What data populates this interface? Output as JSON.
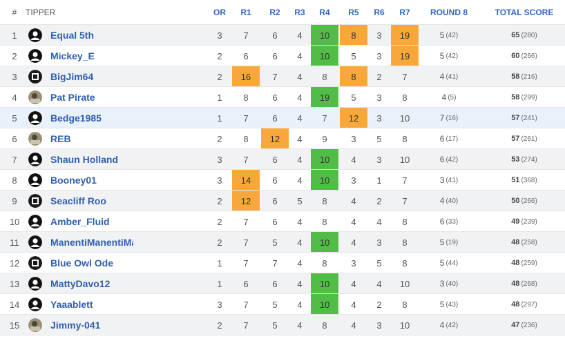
{
  "header": {
    "rank": "#",
    "tipper": "TIPPER",
    "or": "OR",
    "r1": "R1",
    "r2": "R2",
    "r3": "R3",
    "r4": "R4",
    "r5": "R5",
    "r6": "R6",
    "r7": "R7",
    "round8": "ROUND 8",
    "total": "TOTAL SCORE"
  },
  "colors": {
    "accent": "#2f66c7",
    "green": "#51bd46",
    "orange": "#f8a83a",
    "highlight_row": "#e9f1fb"
  },
  "rows": [
    {
      "rank": "1",
      "name": "Equal 5th",
      "avatar": "default-avatar-icon",
      "or": "3",
      "r1": "7",
      "r2": "6",
      "r3": "4",
      "r4": "10",
      "r5": "8",
      "r6": "3",
      "r7": "19",
      "rd8": "5",
      "rd8_sub": "(42)",
      "total": "65",
      "total_sub": "(280)",
      "hl": {
        "r4": "green",
        "r5": "orange",
        "r7": "orange"
      }
    },
    {
      "rank": "2",
      "name": "Mickey_E",
      "avatar": "default-avatar-icon",
      "or": "2",
      "r1": "6",
      "r2": "6",
      "r3": "4",
      "r4": "10",
      "r5": "5",
      "r6": "3",
      "r7": "19",
      "rd8": "5",
      "rd8_sub": "(42)",
      "total": "60",
      "total_sub": "(266)",
      "hl": {
        "r4": "green",
        "r7": "orange"
      }
    },
    {
      "rank": "3",
      "name": "BigJim64",
      "avatar": "badge-avatar-icon",
      "or": "2",
      "r1": "16",
      "r2": "7",
      "r3": "4",
      "r4": "8",
      "r5": "8",
      "r6": "2",
      "r7": "7",
      "rd8": "4",
      "rd8_sub": "(41)",
      "total": "58",
      "total_sub": "(216)",
      "hl": {
        "r1": "orange",
        "r5": "orange"
      }
    },
    {
      "rank": "4",
      "name": "Pat Pirate",
      "avatar": "photo-avatar-icon",
      "or": "1",
      "r1": "8",
      "r2": "6",
      "r3": "4",
      "r4": "19",
      "r5": "5",
      "r6": "3",
      "r7": "8",
      "rd8": "4",
      "rd8_sub": "(5)",
      "total": "58",
      "total_sub": "(299)",
      "hl": {
        "r4": "green"
      }
    },
    {
      "rank": "5",
      "name": "Bedge1985",
      "avatar": "default-avatar-icon",
      "or": "1",
      "r1": "7",
      "r2": "6",
      "r3": "4",
      "r4": "7",
      "r5": "12",
      "r6": "3",
      "r7": "10",
      "rd8": "7",
      "rd8_sub": "(16)",
      "total": "57",
      "total_sub": "(241)",
      "hl": {
        "r5": "orange"
      }
    },
    {
      "rank": "6",
      "name": "REB",
      "avatar": "photo-avatar-icon",
      "or": "2",
      "r1": "8",
      "r2": "12",
      "r3": "4",
      "r4": "9",
      "r5": "3",
      "r6": "5",
      "r7": "8",
      "rd8": "6",
      "rd8_sub": "(17)",
      "total": "57",
      "total_sub": "(261)",
      "hl": {
        "r2": "orange"
      }
    },
    {
      "rank": "7",
      "name": "Shaun Holland",
      "avatar": "default-avatar-icon",
      "or": "3",
      "r1": "7",
      "r2": "6",
      "r3": "4",
      "r4": "10",
      "r5": "4",
      "r6": "3",
      "r7": "10",
      "rd8": "6",
      "rd8_sub": "(42)",
      "total": "53",
      "total_sub": "(274)",
      "hl": {
        "r4": "green"
      }
    },
    {
      "rank": "8",
      "name": "Booney01",
      "avatar": "default-avatar-icon",
      "or": "3",
      "r1": "14",
      "r2": "6",
      "r3": "4",
      "r4": "10",
      "r5": "3",
      "r6": "1",
      "r7": "7",
      "rd8": "3",
      "rd8_sub": "(41)",
      "total": "51",
      "total_sub": "(368)",
      "hl": {
        "r1": "orange",
        "r4": "green"
      }
    },
    {
      "rank": "9",
      "name": "Seacliff Roo",
      "avatar": "badge-avatar-icon",
      "or": "2",
      "r1": "12",
      "r2": "6",
      "r3": "5",
      "r4": "8",
      "r5": "4",
      "r6": "2",
      "r7": "7",
      "rd8": "4",
      "rd8_sub": "(40)",
      "total": "50",
      "total_sub": "(266)",
      "hl": {
        "r1": "orange"
      }
    },
    {
      "rank": "10",
      "name": "Amber_Fluid",
      "avatar": "default-avatar-icon",
      "or": "2",
      "r1": "7",
      "r2": "6",
      "r3": "4",
      "r4": "8",
      "r5": "4",
      "r6": "4",
      "r7": "8",
      "rd8": "6",
      "rd8_sub": "(33)",
      "total": "49",
      "total_sub": "(239)",
      "hl": {}
    },
    {
      "rank": "11",
      "name": "ManentiManentiMa",
      "avatar": "default-avatar-icon",
      "or": "2",
      "r1": "7",
      "r2": "5",
      "r3": "4",
      "r4": "10",
      "r5": "4",
      "r6": "3",
      "r7": "8",
      "rd8": "5",
      "rd8_sub": "(19)",
      "total": "48",
      "total_sub": "(258)",
      "hl": {
        "r4": "green"
      }
    },
    {
      "rank": "12",
      "name": "Blue Owl Ode",
      "avatar": "badge-avatar-icon",
      "or": "1",
      "r1": "7",
      "r2": "7",
      "r3": "4",
      "r4": "8",
      "r5": "3",
      "r6": "5",
      "r7": "8",
      "rd8": "5",
      "rd8_sub": "(44)",
      "total": "48",
      "total_sub": "(259)",
      "hl": {}
    },
    {
      "rank": "13",
      "name": "MattyDavo12",
      "avatar": "default-avatar-icon",
      "or": "1",
      "r1": "6",
      "r2": "6",
      "r3": "4",
      "r4": "10",
      "r5": "4",
      "r6": "4",
      "r7": "10",
      "rd8": "3",
      "rd8_sub": "(40)",
      "total": "48",
      "total_sub": "(268)",
      "hl": {
        "r4": "green"
      }
    },
    {
      "rank": "14",
      "name": "Yaaablett",
      "avatar": "default-avatar-icon",
      "or": "3",
      "r1": "7",
      "r2": "5",
      "r3": "4",
      "r4": "10",
      "r5": "4",
      "r6": "2",
      "r7": "8",
      "rd8": "5",
      "rd8_sub": "(43)",
      "total": "48",
      "total_sub": "(297)",
      "hl": {
        "r4": "green"
      }
    },
    {
      "rank": "15",
      "name": "Jimmy-041",
      "avatar": "photo-avatar-icon",
      "or": "2",
      "r1": "7",
      "r2": "5",
      "r3": "4",
      "r4": "8",
      "r5": "4",
      "r6": "3",
      "r7": "10",
      "rd8": "4",
      "rd8_sub": "(42)",
      "total": "47",
      "total_sub": "(236)",
      "hl": {}
    }
  ]
}
